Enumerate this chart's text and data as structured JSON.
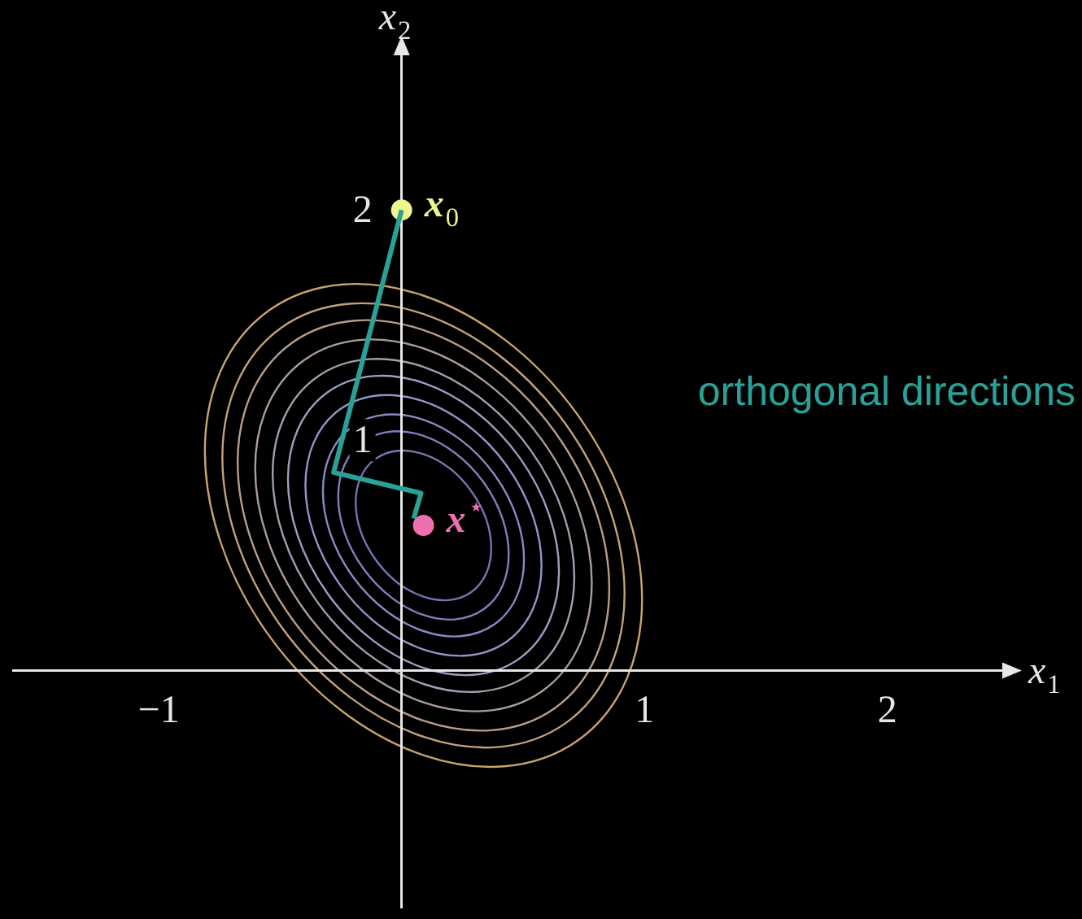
{
  "chart_data": {
    "type": "line",
    "xlabel": "x$_{1}$",
    "ylabel": "x$_{2}$",
    "xlim": [
      -1.6,
      2.5
    ],
    "ylim": [
      -1.03,
      2.7
    ],
    "xticks": [
      -1,
      1,
      2
    ],
    "yticks": [
      1,
      2
    ],
    "marker": "none",
    "annotations": [
      {
        "text": "x$_{0}$",
        "x": 0,
        "y": 2
      },
      {
        "text": "x$^{⋆}$",
        "x": 0.09,
        "y": 0.63
      }
    ],
    "series": [
      {
        "name": "orthogonal directions",
        "color": "#2aa198",
        "x": [
          0,
          -0.28,
          0.08,
          0.05
        ],
        "values": [
          2,
          0.86,
          0.77,
          0.66
        ]
      },
      {
        "type": "scatter",
        "marker": "circle",
        "color": "#eef58a",
        "x": [
          0
        ],
        "values": [
          2
        ]
      },
      {
        "type": "scatter",
        "marker": "circle",
        "color": "#f06fb0",
        "x": [
          0.09
        ],
        "values": [
          0.63
        ]
      }
    ]
  }
}
